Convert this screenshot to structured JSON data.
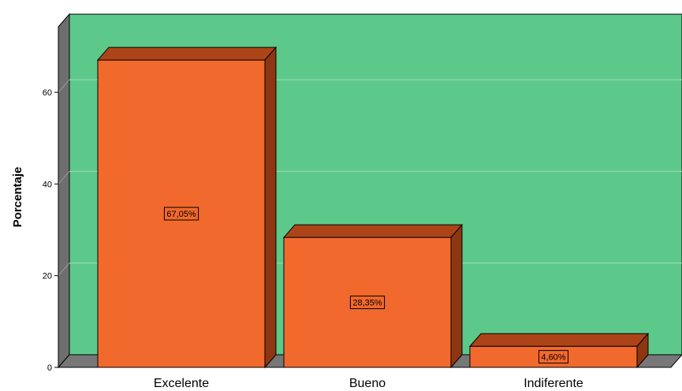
{
  "chart_data": {
    "type": "bar",
    "title": "",
    "xlabel": "",
    "ylabel": "Porcentaje",
    "categories": [
      "Excelente",
      "Bueno",
      "Indiferente"
    ],
    "values": [
      67.05,
      28.35,
      4.6
    ],
    "data_labels": [
      "67,05%",
      "28,35%",
      "4,60%"
    ],
    "yticks": [
      0,
      20,
      40,
      60
    ],
    "ylim": [
      0,
      77
    ],
    "grid": true,
    "style": "3d",
    "colors": {
      "plot_background": "#5cc98b",
      "bar_front": "#f2692d",
      "bar_top": "#ad4418",
      "bar_side": "#8e3612",
      "left_wall": "#6e6e6e",
      "floor": "#777777",
      "gridline": "#a8d9b8"
    }
  }
}
